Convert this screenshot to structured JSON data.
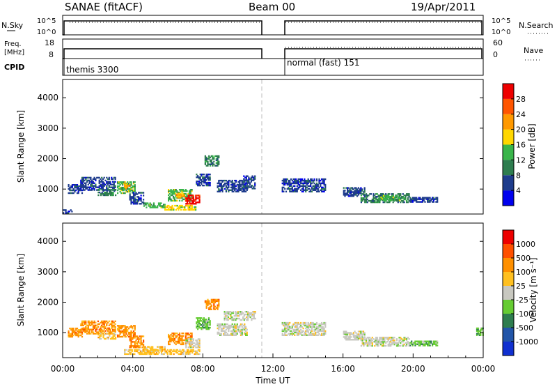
{
  "header": {
    "title": "SANAE (fitACF)",
    "beam": "Beam 00",
    "date": "19/Apr/2011"
  },
  "top_panels": {
    "nsky_label": "N.Sky",
    "nsearch_label": "N.Search",
    "noise_ticks": [
      "10^5",
      "10^0"
    ],
    "freq_label": "Freq.",
    "freq_unit": "[MHz]",
    "freq_ticks": [
      "18",
      "8"
    ],
    "nave_label": "Nave",
    "nave_ticks": [
      "60",
      "0"
    ],
    "cpid_label": "CPID",
    "cpid_segments": [
      "themis 3300",
      "normal (fast) 151"
    ],
    "data_gap_hours": [
      11.0,
      12.5
    ]
  },
  "chart_data": [
    {
      "type": "heatmap",
      "panel": "power",
      "ylabel": "Slant Range [km]",
      "yticks": [
        1000,
        2000,
        3000,
        4000
      ],
      "ylim": [
        180,
        4600
      ],
      "xlim_hours": [
        0,
        24
      ],
      "colorbar_label": "Power [dB]",
      "colorbar_ticks": [
        "28",
        "24",
        "20",
        "16",
        "12",
        "8",
        "4"
      ],
      "colors": [
        "#0000ee",
        "#1e3c8c",
        "#2e7d4f",
        "#39b54a",
        "#ffd700",
        "#ff9900",
        "#ff5500",
        "#ee0000"
      ],
      "echo_regions": [
        {
          "t": [
            0.3,
            1.1
          ],
          "r": [
            850,
            1150
          ],
          "level": 1
        },
        {
          "t": [
            1.0,
            3.0
          ],
          "r": [
            950,
            1400
          ],
          "level": 1
        },
        {
          "t": [
            2.0,
            3.0
          ],
          "r": [
            780,
            1000
          ],
          "level": 2
        },
        {
          "t": [
            3.1,
            4.1
          ],
          "r": [
            850,
            1250
          ],
          "level": 3
        },
        {
          "t": [
            3.5,
            3.9
          ],
          "r": [
            1000,
            1150
          ],
          "level": 5
        },
        {
          "t": [
            3.8,
            4.6
          ],
          "r": [
            500,
            900
          ],
          "level": 1
        },
        {
          "t": [
            4.6,
            5.8
          ],
          "r": [
            380,
            560
          ],
          "level": 3
        },
        {
          "t": [
            5.8,
            7.6
          ],
          "r": [
            300,
            460
          ],
          "level": 4
        },
        {
          "t": [
            6.0,
            7.4
          ],
          "r": [
            600,
            1000
          ],
          "level": 3
        },
        {
          "t": [
            6.4,
            7.0
          ],
          "r": [
            700,
            850
          ],
          "level": 5
        },
        {
          "t": [
            7.0,
            7.8
          ],
          "r": [
            500,
            800
          ],
          "level": 7
        },
        {
          "t": [
            7.6,
            8.4
          ],
          "r": [
            1100,
            1500
          ],
          "level": 1
        },
        {
          "t": [
            8.1,
            8.9
          ],
          "r": [
            1750,
            2100
          ],
          "level": 2
        },
        {
          "t": [
            8.8,
            10.5
          ],
          "r": [
            900,
            1300
          ],
          "level": 1
        },
        {
          "t": [
            10.3,
            11.0
          ],
          "r": [
            1000,
            1450
          ],
          "level": 1
        },
        {
          "t": [
            12.5,
            15.0
          ],
          "r": [
            900,
            1350
          ],
          "level": 1
        },
        {
          "t": [
            16.0,
            17.2
          ],
          "r": [
            750,
            1050
          ],
          "level": 1
        },
        {
          "t": [
            17.0,
            19.8
          ],
          "r": [
            550,
            850
          ],
          "level": 2
        },
        {
          "t": [
            18.0,
            19.2
          ],
          "r": [
            620,
            760
          ],
          "level": 3
        },
        {
          "t": [
            19.8,
            21.4
          ],
          "r": [
            560,
            720
          ],
          "level": 1
        },
        {
          "t": [
            0.0,
            0.5
          ],
          "r": [
            200,
            320
          ],
          "level": 1
        }
      ]
    },
    {
      "type": "heatmap",
      "panel": "velocity",
      "ylabel": "Slant Range [km]",
      "yticks": [
        1000,
        2000,
        3000,
        4000
      ],
      "ylim": [
        180,
        4600
      ],
      "xlabel": "Time UT",
      "xticks": [
        "00:00",
        "04:00",
        "08:00",
        "12:00",
        "16:00",
        "20:00",
        "00:00"
      ],
      "xtick_hours": [
        0,
        4,
        8,
        12,
        16,
        20,
        24
      ],
      "xlim_hours": [
        0,
        24
      ],
      "colorbar_label": "Velocity [m s⁻¹]",
      "colorbar_ticks": [
        "1000",
        "500",
        "100",
        "25",
        "-25",
        "-100",
        "-500",
        "-1000"
      ],
      "colors": [
        "#1030d0",
        "#2255a8",
        "#2e7d4f",
        "#66cc33",
        "#c8c8c0",
        "#ffc020",
        "#ff9000",
        "#ff5000",
        "#ee0000"
      ],
      "echo_regions": [
        {
          "t": [
            0.3,
            1.1
          ],
          "r": [
            850,
            1150
          ],
          "color_index": 6
        },
        {
          "t": [
            1.0,
            3.0
          ],
          "r": [
            950,
            1400
          ],
          "color_index": 6
        },
        {
          "t": [
            2.0,
            3.0
          ],
          "r": [
            780,
            1000
          ],
          "color_index": 5
        },
        {
          "t": [
            3.1,
            4.1
          ],
          "r": [
            850,
            1250
          ],
          "color_index": 6
        },
        {
          "t": [
            3.8,
            4.6
          ],
          "r": [
            500,
            900
          ],
          "color_index": 6
        },
        {
          "t": [
            4.6,
            5.8
          ],
          "r": [
            380,
            560
          ],
          "color_index": 5
        },
        {
          "t": [
            3.5,
            7.8
          ],
          "r": [
            280,
            420
          ],
          "color_index": 5
        },
        {
          "t": [
            6.0,
            7.4
          ],
          "r": [
            600,
            1000
          ],
          "color_index": 6
        },
        {
          "t": [
            7.0,
            7.8
          ],
          "r": [
            500,
            800
          ],
          "color_index": 4
        },
        {
          "t": [
            7.6,
            8.4
          ],
          "r": [
            1100,
            1500
          ],
          "color_index": 3
        },
        {
          "t": [
            8.1,
            8.9
          ],
          "r": [
            1750,
            2100
          ],
          "color_index": 6
        },
        {
          "t": [
            8.8,
            10.5
          ],
          "r": [
            900,
            1300
          ],
          "color_index": 4
        },
        {
          "t": [
            9.2,
            11.0
          ],
          "r": [
            1400,
            1700
          ],
          "color_index": 4
        },
        {
          "t": [
            12.5,
            15.0
          ],
          "r": [
            900,
            1350
          ],
          "color_index": 4
        },
        {
          "t": [
            16.0,
            17.2
          ],
          "r": [
            750,
            1050
          ],
          "color_index": 4
        },
        {
          "t": [
            17.0,
            19.8
          ],
          "r": [
            550,
            850
          ],
          "color_index": 4
        },
        {
          "t": [
            19.8,
            21.4
          ],
          "r": [
            560,
            720
          ],
          "color_index": 3
        },
        {
          "t": [
            23.6,
            24.0
          ],
          "r": [
            900,
            1150
          ],
          "color_index": 3
        }
      ]
    }
  ]
}
